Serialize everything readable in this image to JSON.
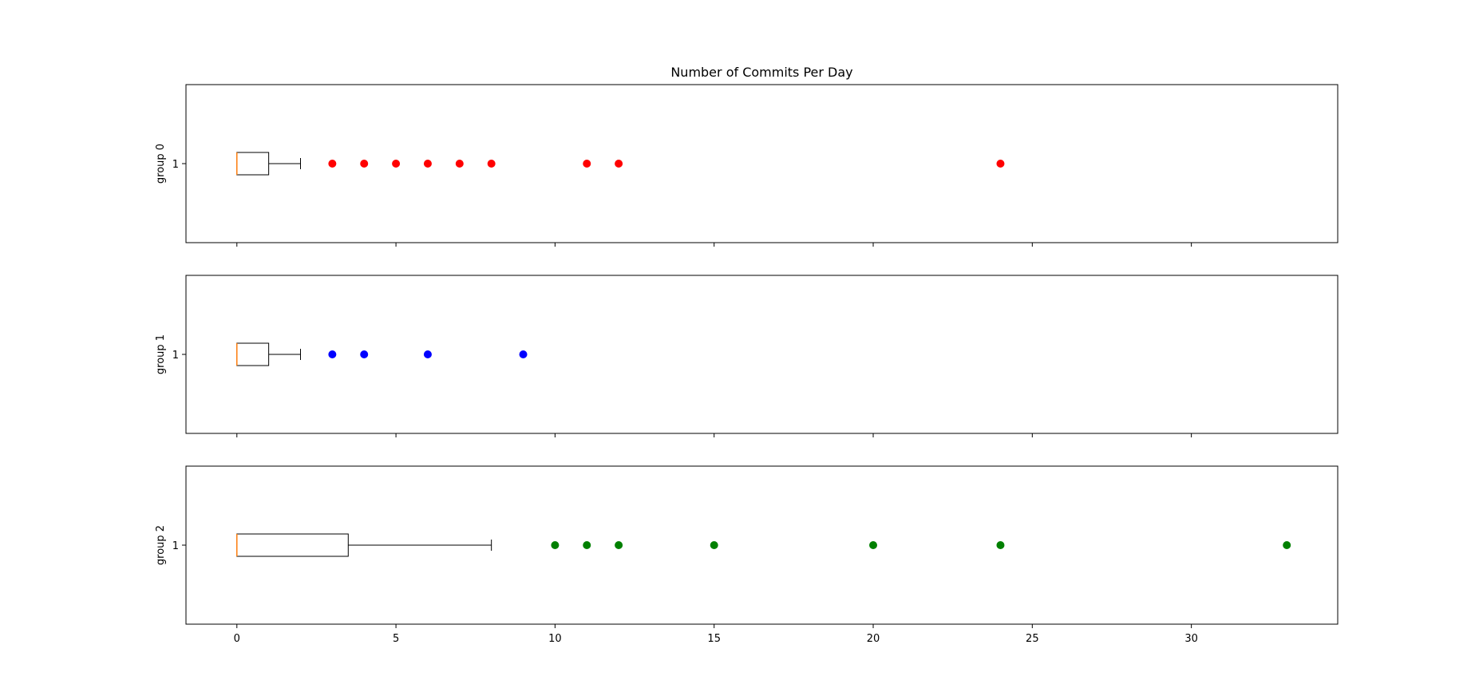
{
  "chart_data": {
    "type": "boxplot",
    "title": "Number of Commits Per Day",
    "orientation": "horizontal",
    "shared_x": true,
    "xlim": [
      -1.6,
      34.6
    ],
    "xticks": [
      0,
      5,
      10,
      15,
      20,
      25,
      30
    ],
    "xtick_labels": [
      "0",
      "5",
      "10",
      "15",
      "20",
      "25",
      "30"
    ],
    "panels": [
      {
        "ylabel": "group 0",
        "ytick_label": "1",
        "box": {
          "whisker_low": 0,
          "q1": 0,
          "median": 0,
          "q3": 1,
          "whisker_high": 2
        },
        "outliers": [
          3,
          4,
          5,
          6,
          7,
          8,
          11,
          12,
          24
        ],
        "outlier_color": "#ff0000"
      },
      {
        "ylabel": "group 1",
        "ytick_label": "1",
        "box": {
          "whisker_low": 0,
          "q1": 0,
          "median": 0,
          "q3": 1,
          "whisker_high": 2
        },
        "outliers": [
          3,
          4,
          6,
          9
        ],
        "outlier_color": "#0000ff"
      },
      {
        "ylabel": "group 2",
        "ytick_label": "1",
        "box": {
          "whisker_low": 0,
          "q1": 0,
          "median": 0,
          "q3": 3.5,
          "whisker_high": 8
        },
        "outliers": [
          10,
          11,
          12,
          15,
          20,
          24,
          33
        ],
        "outlier_color": "#008000"
      }
    ],
    "median_color": "#ff7f0e",
    "grid": false
  }
}
